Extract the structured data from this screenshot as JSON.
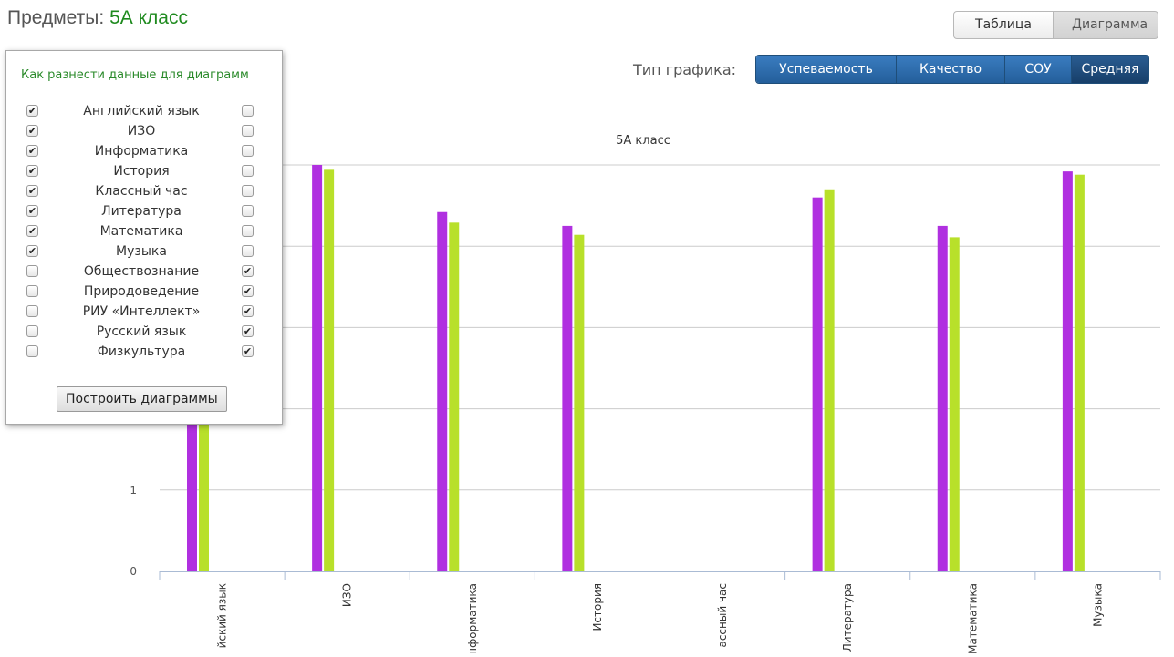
{
  "page_title": {
    "prefix": "Предметы:",
    "class_name": "5А класс"
  },
  "view_toggle": {
    "table": "Таблица",
    "chart": "Диаграмма",
    "active": "chart"
  },
  "chart_type": {
    "label": "Тип графика:",
    "options": [
      "Успеваемость",
      "Качество",
      "СОУ",
      "Средняя"
    ],
    "active": "Средняя"
  },
  "panel": {
    "title": "Как разнести данные для диаграмм",
    "subjects": [
      {
        "label": "Английский язык",
        "left": true,
        "right": false
      },
      {
        "label": "ИЗО",
        "left": true,
        "right": false
      },
      {
        "label": "Информатика",
        "left": true,
        "right": false
      },
      {
        "label": "История",
        "left": true,
        "right": false
      },
      {
        "label": "Классный час",
        "left": true,
        "right": false
      },
      {
        "label": "Литература",
        "left": true,
        "right": false
      },
      {
        "label": "Математика",
        "left": true,
        "right": false
      },
      {
        "label": "Музыка",
        "left": true,
        "right": false
      },
      {
        "label": "Обществознание",
        "left": false,
        "right": true
      },
      {
        "label": "Природоведение",
        "left": false,
        "right": true
      },
      {
        "label": "РИУ «Интеллект»",
        "left": false,
        "right": true
      },
      {
        "label": "Русский язык",
        "left": false,
        "right": true
      },
      {
        "label": "Физкультура",
        "left": false,
        "right": true
      }
    ],
    "build_button": "Построить диаграммы"
  },
  "colors": {
    "series1": "#b030e0",
    "series2": "#b8e02a",
    "title_green": "#1e8a1e",
    "button_blue": "#2a6aaa"
  },
  "chart_data": {
    "type": "bar",
    "title": "5А класс",
    "categories": [
      "Английский язык",
      "ИЗО",
      "Информатика",
      "История",
      "Классный час",
      "Литература",
      "Математика",
      "Музыка"
    ],
    "category_labels_visible": [
      "йский язык",
      "ИЗО",
      "нформатика",
      "История",
      "ассный час",
      "Литература",
      "Математика",
      "Музыка"
    ],
    "series": [
      {
        "values": [
          4.2,
          5.0,
          4.42,
          4.25,
          null,
          4.6,
          4.25,
          4.92
        ]
      },
      {
        "values": [
          4.0,
          4.94,
          4.29,
          4.14,
          null,
          4.7,
          4.11,
          4.88
        ]
      }
    ],
    "y_ticks": [
      0,
      1
    ],
    "ylim": [
      0,
      5
    ],
    "grid": true
  }
}
